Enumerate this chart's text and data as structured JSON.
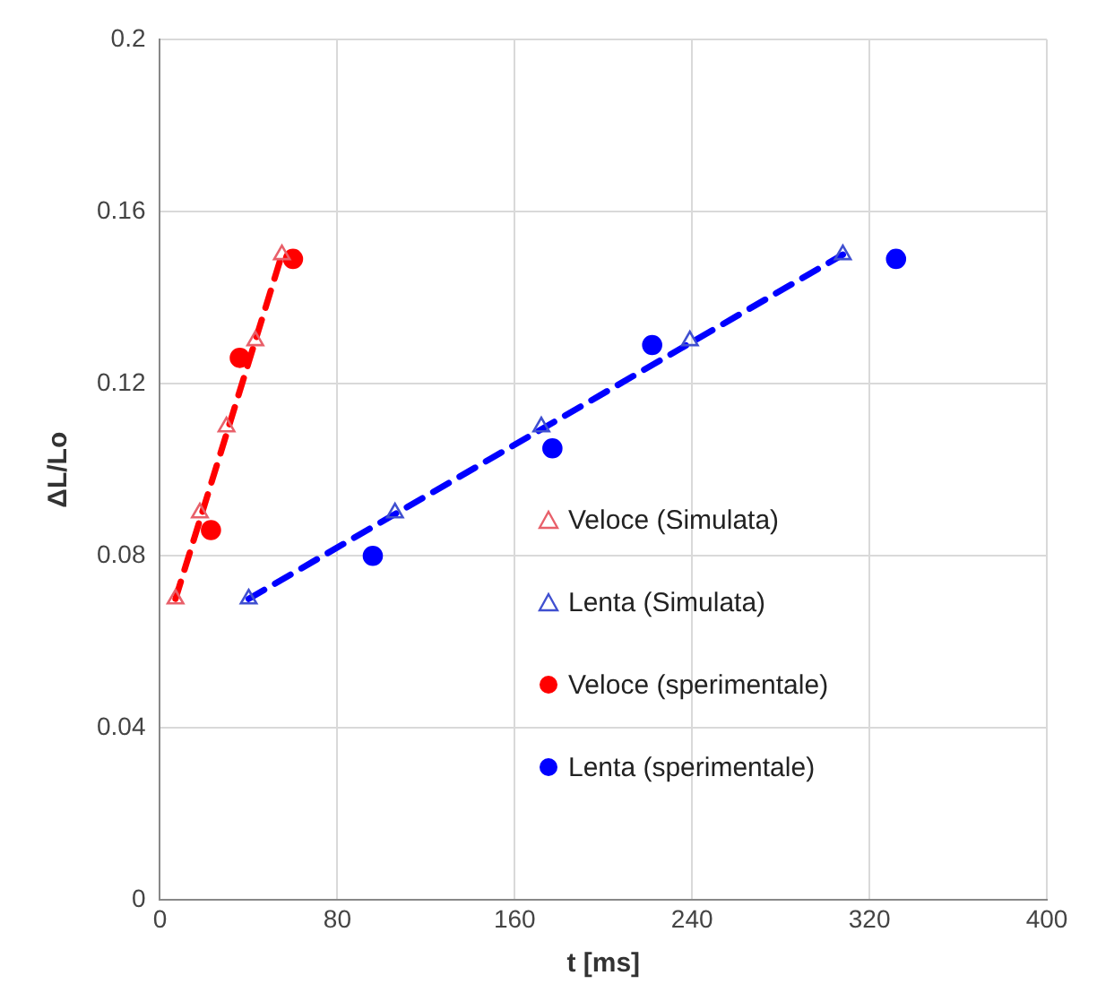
{
  "chart_data": {
    "type": "scatter",
    "xlabel": "t [ms]",
    "ylabel": "ΔL/Lo",
    "xlim": [
      0,
      400
    ],
    "xticks": [
      0,
      80,
      160,
      240,
      320,
      400
    ],
    "ylim": [
      0,
      0.2
    ],
    "yticks": [
      0,
      0.04,
      0.08,
      0.12,
      0.16,
      0.2
    ],
    "grid": true,
    "legend": "right",
    "series": [
      {
        "name": "Veloce (Simulata)",
        "type": "scatter",
        "marker": "triangle",
        "color": "#e8606a",
        "x": [
          7,
          18,
          30,
          43,
          55
        ],
        "values": [
          0.07,
          0.09,
          0.11,
          0.13,
          0.15
        ]
      },
      {
        "name": "Lenta (Simulata)",
        "type": "scatter",
        "marker": "triangle",
        "color": "#4050d0",
        "x": [
          40,
          106,
          172,
          239,
          308
        ],
        "values": [
          0.07,
          0.09,
          0.11,
          0.13,
          0.15
        ]
      },
      {
        "name": "Veloce (sperimentale)",
        "type": "scatter",
        "marker": "circle",
        "color": "#ff0000",
        "x": [
          23,
          36,
          60
        ],
        "values": [
          0.086,
          0.126,
          0.149
        ]
      },
      {
        "name": "Lenta (sperimentale)",
        "type": "scatter",
        "marker": "circle",
        "color": "#0000ff",
        "x": [
          96,
          177,
          222,
          332
        ],
        "values": [
          0.08,
          0.105,
          0.129,
          0.149
        ]
      },
      {
        "type": "line",
        "line_style": "dashed",
        "marker": "none",
        "color": "#ff0000",
        "x": [
          7,
          55
        ],
        "values": [
          0.07,
          0.15
        ]
      },
      {
        "type": "line",
        "line_style": "dashed",
        "marker": "none",
        "color": "#0000ff",
        "x": [
          40,
          308
        ],
        "values": [
          0.07,
          0.15
        ]
      }
    ]
  }
}
